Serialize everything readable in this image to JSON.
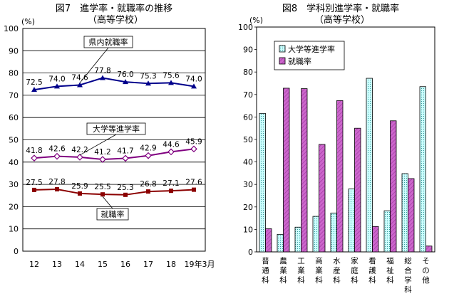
{
  "chart_data": [
    {
      "type": "line",
      "title": "図7　進学率・就職率の推移",
      "subtitle": "（高等学校）",
      "unit": "(%)",
      "x": [
        "12",
        "13",
        "14",
        "15",
        "16",
        "17",
        "18",
        "19年3月"
      ],
      "ylim": [
        0,
        100
      ],
      "yticks": [
        0,
        10,
        20,
        30,
        40,
        50,
        60,
        70,
        80,
        90,
        100
      ],
      "grid": true,
      "series": [
        {
          "name": "県内就職率",
          "values": [
            72.5,
            74.0,
            74.6,
            77.8,
            76.0,
            75.3,
            75.6,
            74.0
          ],
          "color": "#00008b",
          "marker": "triangle"
        },
        {
          "name": "大学等進学率",
          "values": [
            41.8,
            42.6,
            42.2,
            41.2,
            41.7,
            42.9,
            44.6,
            45.9
          ],
          "color": "#800080",
          "marker": "diamond"
        },
        {
          "name": "就職率",
          "values": [
            27.5,
            27.8,
            25.9,
            25.5,
            25.3,
            26.8,
            27.1,
            27.6
          ],
          "color": "#8b0000",
          "marker": "square"
        }
      ],
      "value_labels": [
        [
          "72.5",
          "74.0",
          "74.6",
          "77.8",
          "76.0",
          "75.3",
          "75.6",
          "74.0"
        ],
        [
          "41.8",
          "42.6",
          "42.2",
          "41.2",
          "41.7",
          "42.9",
          "44.6",
          "45.9"
        ],
        [
          "27.5",
          "27.8",
          "25.9",
          "25.5",
          "25.3",
          "26.8",
          "27.1",
          "27.6"
        ]
      ]
    },
    {
      "type": "bar",
      "title": "図8　学科別進学率・就職率",
      "subtitle": "（高等学校）",
      "unit": "(%)",
      "categories": [
        "普通科",
        "農業科",
        "工業科",
        "商業科",
        "水産科",
        "家庭科",
        "看護科",
        "福祉科",
        "総合学科",
        "その他"
      ],
      "ylim": [
        0,
        100
      ],
      "yticks": [
        0,
        10,
        20,
        30,
        40,
        50,
        60,
        70,
        80,
        90,
        100
      ],
      "grid": false,
      "legend": "top-left",
      "series": [
        {
          "name": "大学等進学率",
          "values": [
            61.6,
            7.8,
            11.0,
            15.8,
            17.3,
            28.0,
            77.2,
            18.3,
            34.8,
            73.5
          ],
          "color": "#ccffff"
        },
        {
          "name": "就職率",
          "values": [
            10.3,
            72.8,
            72.6,
            47.8,
            67.3,
            55.0,
            11.3,
            58.3,
            32.6,
            2.6
          ],
          "color": "#cc66cc"
        }
      ]
    }
  ]
}
